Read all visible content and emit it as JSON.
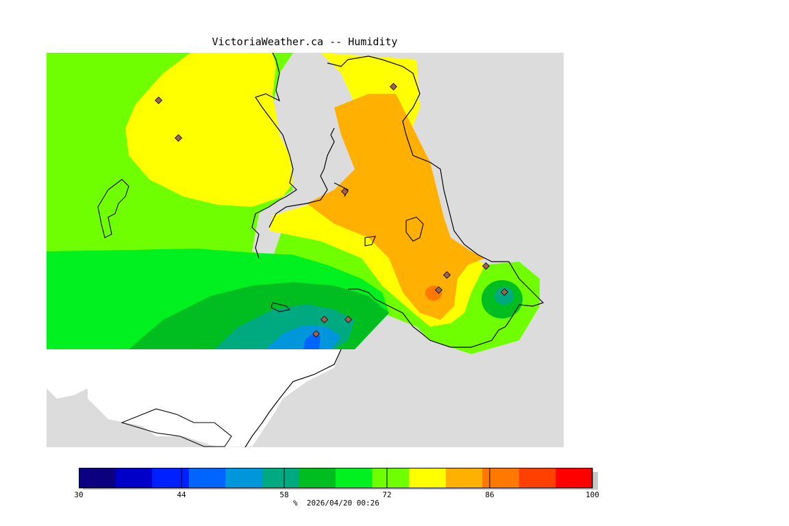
{
  "title": "VictoriaWeather.ca -- Humidity",
  "footer": {
    "unit": "%",
    "timestamp": "2026/04/20 00:26"
  },
  "colorbar": {
    "min": 30,
    "max": 100,
    "tick_labels": [
      "30",
      "44",
      "58",
      "72",
      "86",
      "100"
    ],
    "tick_values": [
      30,
      44,
      58,
      72,
      86,
      100
    ],
    "bins": [
      {
        "from": 30,
        "to": 35,
        "color": "#0b0080"
      },
      {
        "from": 35,
        "to": 40,
        "color": "#0000c8"
      },
      {
        "from": 40,
        "to": 45,
        "color": "#0020ff"
      },
      {
        "from": 45,
        "to": 50,
        "color": "#0064ff"
      },
      {
        "from": 50,
        "to": 55,
        "color": "#0096dc"
      },
      {
        "from": 55,
        "to": 60,
        "color": "#00aa80"
      },
      {
        "from": 60,
        "to": 65,
        "color": "#00be20"
      },
      {
        "from": 65,
        "to": 70,
        "color": "#00f020"
      },
      {
        "from": 70,
        "to": 75,
        "color": "#70ff00"
      },
      {
        "from": 75,
        "to": 80,
        "color": "#ffff00"
      },
      {
        "from": 80,
        "to": 85,
        "color": "#ffb000"
      },
      {
        "from": 85,
        "to": 90,
        "color": "#ff7800"
      },
      {
        "from": 90,
        "to": 95,
        "color": "#ff4000"
      },
      {
        "from": 95,
        "to": 100,
        "color": "#ff0000"
      }
    ]
  },
  "colors": {
    "land_no_data": "#dcdcdc",
    "outside_domain": "#ffffff",
    "coastline": "#000000",
    "station_marker": "#a06050"
  },
  "map_legend": {
    "stations_icon": "diamond-station-marker"
  }
}
